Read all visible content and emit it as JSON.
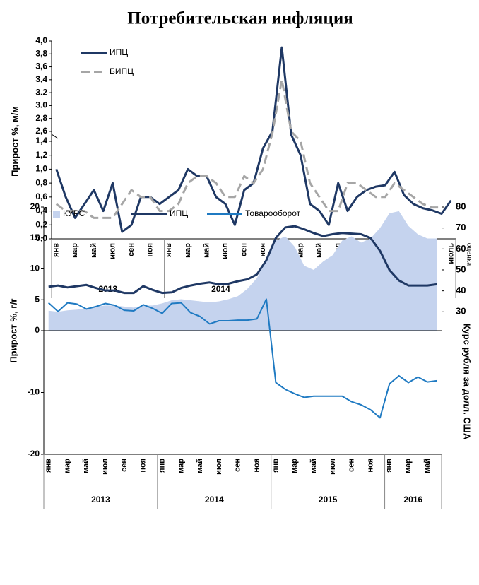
{
  "chart_data": [
    {
      "type": "line",
      "title": "Потребительская инфляция",
      "y_label": "Прирост %, м/м",
      "annotation": "оценка",
      "categories": [
        "янв",
        null,
        "мар",
        null,
        "май",
        null,
        "июл",
        null,
        "сен",
        null,
        "ноя",
        null,
        "янв",
        null,
        "мар",
        null,
        "май",
        null,
        "июл",
        null,
        "сен",
        null,
        "ноя",
        null,
        "янв",
        null,
        "мар",
        null,
        "май",
        null,
        "июл",
        null,
        "сен",
        null,
        "ноя",
        null,
        "янв",
        null,
        "мар",
        null,
        "май",
        null,
        "июль"
      ],
      "year_groups": [
        "2013",
        "2014",
        "2015",
        "2016"
      ],
      "series": [
        {
          "name": "ИПЦ",
          "color": "#1f3864",
          "dashed": false,
          "values": [
            1.0,
            0.6,
            0.3,
            0.5,
            0.7,
            0.4,
            0.8,
            0.1,
            0.2,
            0.6,
            0.6,
            0.5,
            0.6,
            0.7,
            1.0,
            0.9,
            0.9,
            0.6,
            0.5,
            0.2,
            0.7,
            0.8,
            1.3,
            2.6,
            3.9,
            2.2,
            1.2,
            0.5,
            0.4,
            0.2,
            0.8,
            0.4,
            0.6,
            0.7,
            0.75,
            0.77,
            0.96,
            0.63,
            0.5,
            0.44,
            0.41,
            0.36,
            0.55
          ]
        },
        {
          "name": "БИПЦ",
          "color": "#a6a6a6",
          "dashed": true,
          "values": [
            0.5,
            0.4,
            0.4,
            0.4,
            0.3,
            0.3,
            0.3,
            0.5,
            0.7,
            0.6,
            0.6,
            0.4,
            0.4,
            0.5,
            0.8,
            0.9,
            0.9,
            0.8,
            0.6,
            0.6,
            0.9,
            0.8,
            1.0,
            2.4,
            3.4,
            2.6,
            1.4,
            0.8,
            0.6,
            0.4,
            0.4,
            0.8,
            0.8,
            0.7,
            0.6,
            0.6,
            0.8,
            0.7,
            0.6,
            0.5,
            0.45,
            0.45,
            null
          ]
        }
      ],
      "ylim": [
        0,
        4.0
      ],
      "y_break": [
        1.4,
        2.6
      ],
      "yticks": [
        {
          "value": 0,
          "label": "0,0"
        },
        {
          "value": 0.2,
          "label": "0,2"
        },
        {
          "value": 0.4,
          "label": "0,4"
        },
        {
          "value": 0.6,
          "label": "0,6"
        },
        {
          "value": 0.8,
          "label": "0,8"
        },
        {
          "value": 1.0,
          "label": "1,0"
        },
        {
          "value": 1.2,
          "label": "1,2"
        },
        {
          "value": 1.4,
          "label": "1,4"
        },
        {
          "value": 2.6,
          "label": "2,6"
        },
        {
          "value": 2.8,
          "label": "2,8"
        },
        {
          "value": 3.0,
          "label": "3.0"
        },
        {
          "value": 3.2,
          "label": "3.2"
        },
        {
          "value": 3.4,
          "label": "3,4"
        },
        {
          "value": 3.6,
          "label": "3,6"
        },
        {
          "value": 3.8,
          "label": "3,8"
        },
        {
          "value": 4.0,
          "label": "4,0"
        }
      ],
      "legend": "upper left"
    },
    {
      "type": "combo",
      "y_label": "Прирост %, г/г",
      "y2_label": "Курс рубля за долл. США",
      "categories": [
        "янв",
        null,
        "мар",
        null,
        "май",
        null,
        "июл",
        null,
        "сен",
        null,
        "ноя",
        null,
        "янв",
        null,
        "мар",
        null,
        "май",
        null,
        "июл",
        null,
        "сен",
        null,
        "ноя",
        null,
        "янв",
        null,
        "мар",
        null,
        "май",
        null,
        "июл",
        null,
        "сен",
        null,
        "ноя",
        null,
        "янв",
        null,
        "мар",
        null,
        "май",
        null
      ],
      "year_groups": [
        "2013",
        "2014",
        "2015",
        "2016"
      ],
      "series": [
        {
          "name": "КУРС",
          "type": "area",
          "axis": "y2",
          "color": "#c5d3ee",
          "values": [
            30.5,
            30,
            30.7,
            31,
            31.5,
            32.5,
            33,
            33,
            32.5,
            32,
            33,
            33,
            34,
            35.5,
            36,
            35.5,
            35,
            34.5,
            35,
            36,
            37.5,
            41,
            46,
            55,
            64,
            66,
            61,
            52,
            50,
            54,
            57,
            64,
            66,
            63,
            65,
            70,
            77,
            78,
            71,
            67,
            65,
            65
          ]
        },
        {
          "name": "ИПЦ",
          "type": "line",
          "color": "#1f3864",
          "values": [
            7.1,
            7.3,
            7.0,
            7.2,
            7.4,
            6.9,
            6.5,
            6.5,
            6.1,
            6.1,
            7.2,
            6.6,
            6.1,
            6.2,
            6.9,
            7.3,
            7.6,
            7.8,
            7.5,
            7.6,
            8.0,
            8.3,
            9.1,
            11.4,
            15.0,
            16.7,
            16.9,
            16.4,
            15.8,
            15.3,
            15.6,
            15.8,
            15.7,
            15.6,
            15.0,
            12.9,
            9.8,
            8.1,
            7.3,
            7.3,
            7.3,
            7.5
          ]
        },
        {
          "name": "Товарооборот",
          "type": "line",
          "color": "#1f7ac2",
          "values": [
            4.5,
            3.1,
            4.5,
            4.3,
            3.5,
            3.9,
            4.4,
            4.1,
            3.3,
            3.2,
            4.2,
            3.6,
            2.8,
            4.4,
            4.5,
            2.9,
            2.3,
            1.1,
            1.6,
            1.6,
            1.7,
            1.7,
            1.9,
            5.1,
            -8.4,
            -9.5,
            -10.2,
            -10.8,
            -10.6,
            -10.6,
            -10.6,
            -10.6,
            -11.5,
            -12,
            -12.8,
            -14.1,
            -8.6,
            -7.3,
            -8.4,
            -7.5,
            -8.3,
            -8.1
          ]
        }
      ],
      "ylim": [
        -20,
        20
      ],
      "yticks": [
        -20,
        -10,
        0,
        5,
        10,
        15,
        20
      ],
      "y2lim": [
        -38,
        80
      ],
      "y2ticks": [
        30,
        40,
        50,
        60,
        70,
        80
      ],
      "legend": "top"
    }
  ]
}
